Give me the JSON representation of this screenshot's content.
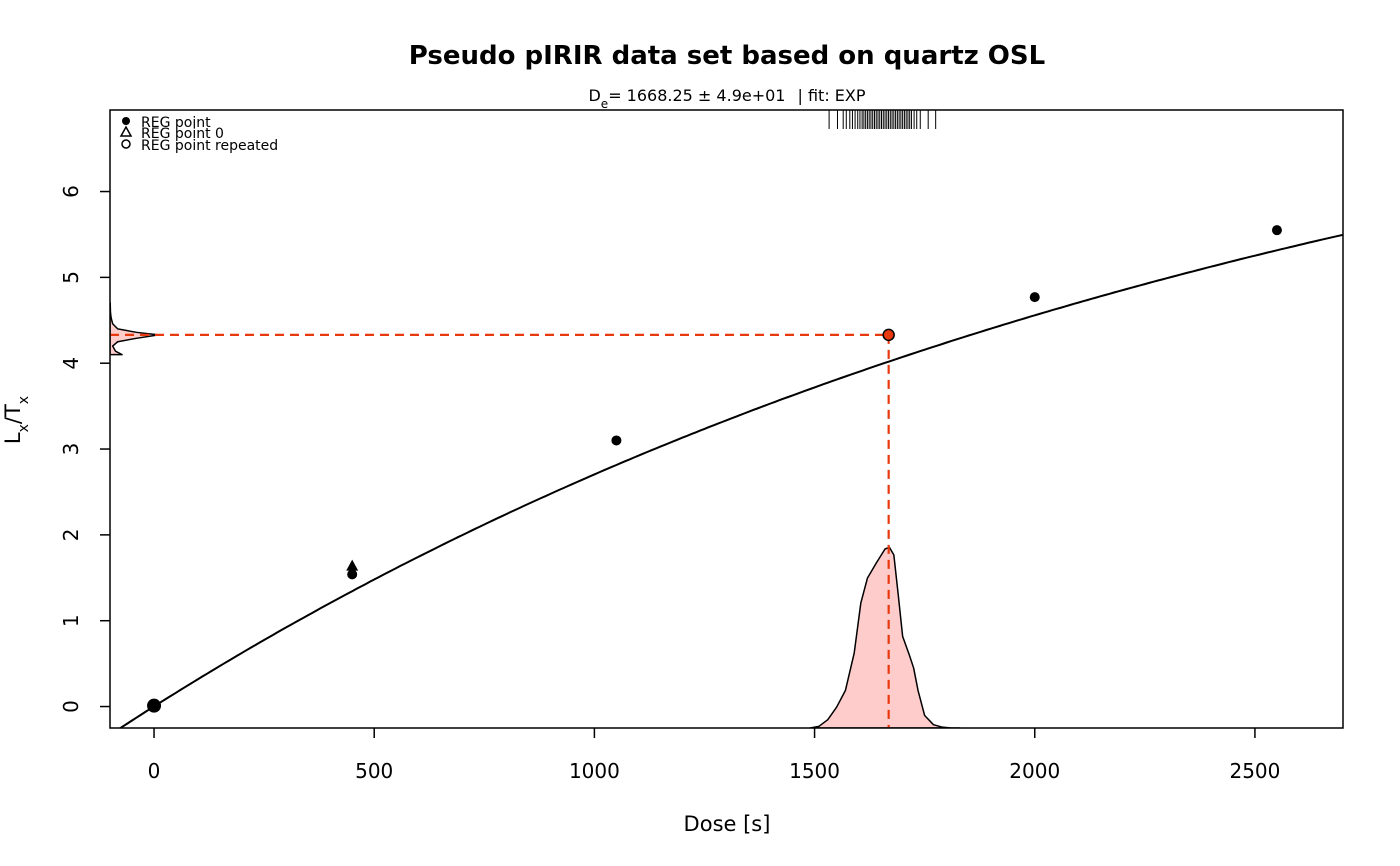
{
  "chart_data": {
    "type": "scatter",
    "title": "Pseudo pIRIR data set based on quartz OSL",
    "subtitle": {
      "de_label_main": "D",
      "de_label_sub": "e",
      "de_value": "= 1668.25 ± 4.9e+01",
      "fit_label": "| fit:  EXP"
    },
    "xlabel": "Dose [s]",
    "ylabel": {
      "main1": "L",
      "sub1": "x",
      "slash": "/",
      "main2": "T",
      "sub2": "x"
    },
    "xlim": [
      -100,
      2700
    ],
    "ylim": [
      -0.25,
      6.95
    ],
    "x_ticks": [
      0,
      500,
      1000,
      1500,
      2000,
      2500
    ],
    "x_tick_labels": [
      "0",
      "500",
      "1000",
      "1500",
      "2000",
      "2500"
    ],
    "y_ticks": [
      0,
      1,
      2,
      3,
      4,
      5,
      6
    ],
    "y_tick_labels": [
      "0",
      "1",
      "2",
      "3",
      "4",
      "5",
      "6"
    ],
    "legend": {
      "position": "top-left",
      "entries": [
        {
          "label": "REG point",
          "symbol": "filled-circle"
        },
        {
          "label": "REG point 0",
          "symbol": "open-triangle"
        },
        {
          "label": "REG point repeated",
          "symbol": "open-circle"
        }
      ]
    },
    "series": [
      {
        "symbol": "filled-circle",
        "x": [
          0,
          450,
          1050,
          2000,
          2550
        ],
        "y": [
          0.01,
          1.54,
          3.1,
          4.77,
          5.55
        ]
      },
      {
        "symbol": "filled-triangle",
        "x": [
          450
        ],
        "y": [
          1.63
        ]
      }
    ],
    "fit_curve": {
      "type": "exponential",
      "a": 8.6,
      "d": 2650,
      "c": 0.001
    },
    "equivalent_dose": {
      "de": 1668.25,
      "de_error": 49,
      "ln_tn": 4.33,
      "color": "#e8380d"
    },
    "dose_distribution_rug": {
      "x": [
        1533,
        1552,
        1565,
        1572,
        1580,
        1586,
        1592,
        1598,
        1603,
        1608,
        1612,
        1616,
        1620,
        1624,
        1628,
        1632,
        1636,
        1640,
        1644,
        1648,
        1652,
        1656,
        1660,
        1664,
        1668,
        1672,
        1676,
        1680,
        1684,
        1688,
        1692,
        1696,
        1700,
        1704,
        1708,
        1712,
        1716,
        1720,
        1726,
        1732,
        1740,
        1758,
        1775
      ]
    },
    "dose_density": {
      "x": [
        1490,
        1510,
        1530,
        1550,
        1570,
        1590,
        1605,
        1620,
        1640,
        1660,
        1670,
        1680,
        1690,
        1700,
        1715,
        1725,
        1735,
        1750,
        1770,
        1790,
        1810,
        1830
      ],
      "y": [
        0,
        0.02,
        0.1,
        0.25,
        0.45,
        0.9,
        1.5,
        1.8,
        1.98,
        2.15,
        2.17,
        2.08,
        1.6,
        1.1,
        0.88,
        0.72,
        0.45,
        0.15,
        0.04,
        0.01,
        0,
        0
      ]
    },
    "lx_density": {
      "y": [
        4.1,
        4.14,
        4.2,
        4.25,
        4.29,
        4.33,
        4.36,
        4.4,
        4.46,
        4.53,
        4.6,
        4.7
      ],
      "width": [
        0.55,
        0.25,
        0.12,
        0.35,
        1.2,
        2.2,
        1.2,
        0.35,
        0.12,
        0.05,
        0.02,
        0.01
      ]
    },
    "colors": {
      "fill": "#ffcccc",
      "highlight": "#e8380d",
      "line": "#000000"
    }
  }
}
